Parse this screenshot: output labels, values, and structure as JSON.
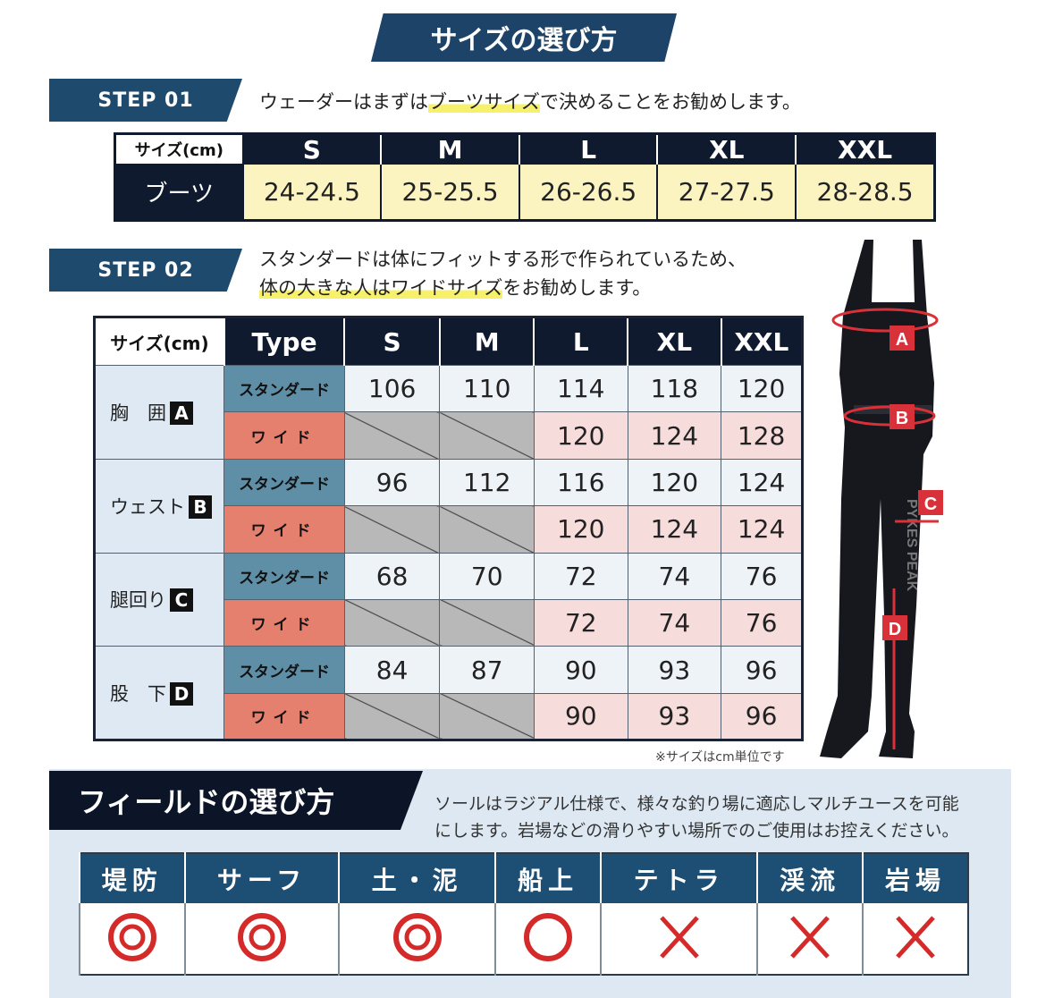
{
  "title": "サイズの選び方",
  "step1": {
    "label": "STEP 01",
    "text_before": "ウェーダーはまずは",
    "text_highlight": "ブーツサイズ",
    "text_after": "で決めることをお勧めします。"
  },
  "boot_table": {
    "header_label": "サイズ(cm)",
    "sizes": [
      "S",
      "M",
      "L",
      "XL",
      "XXL"
    ],
    "row_label": "ブーツ",
    "values": [
      "24-24.5",
      "25-25.5",
      "26-26.5",
      "27-27.5",
      "28-28.5"
    ]
  },
  "step2": {
    "label": "STEP 02",
    "line1": "スタンダードは体にフィットする形で作られているため、",
    "line2_highlight": "体の大きな人はワイドサイズ",
    "line2_after": "をお勧めします。"
  },
  "size_table": {
    "header_label": "サイズ(cm)",
    "type_header": "Type",
    "sizes": [
      "S",
      "M",
      "L",
      "XL",
      "XXL"
    ],
    "standard_label": "スタンダード",
    "wide_label": "ワイド",
    "rows": [
      {
        "label": "胸　囲",
        "key": "A",
        "standard": [
          "106",
          "110",
          "114",
          "118",
          "120"
        ],
        "wide": [
          "",
          "",
          "120",
          "124",
          "128"
        ]
      },
      {
        "label": "ウェスト",
        "key": "B",
        "standard": [
          "96",
          "112",
          "116",
          "120",
          "124"
        ],
        "wide": [
          "",
          "",
          "120",
          "124",
          "124"
        ]
      },
      {
        "label": "腿回り",
        "key": "C",
        "standard": [
          "68",
          "70",
          "72",
          "74",
          "76"
        ],
        "wide": [
          "",
          "",
          "72",
          "74",
          "76"
        ]
      },
      {
        "label": "股　下",
        "key": "D",
        "standard": [
          "84",
          "87",
          "90",
          "93",
          "96"
        ],
        "wide": [
          "",
          "",
          "90",
          "93",
          "96"
        ]
      }
    ],
    "note": "※サイズはcm単位です"
  },
  "product": {
    "brand": "PYKES PEAK",
    "markers": [
      "A",
      "B",
      "C",
      "D"
    ]
  },
  "field": {
    "title": "フィールドの選び方",
    "line1": "ソールはラジアル仕様で、様々な釣り場に適応しマルチユースを可能",
    "line2": "にします。岩場などの滑りやすい場所でのご使用はお控えください。",
    "places": [
      "堤防",
      "サーフ",
      "土・泥",
      "船上",
      "テトラ",
      "渓流",
      "岩場"
    ],
    "ratings": [
      "double-circle",
      "double-circle",
      "double-circle",
      "circle",
      "cross",
      "cross",
      "cross"
    ]
  },
  "colors": {
    "navy": "#1d4468",
    "mark_red": "#d42a2a",
    "standard": "#5f8ea7",
    "wide": "#e6806e"
  }
}
